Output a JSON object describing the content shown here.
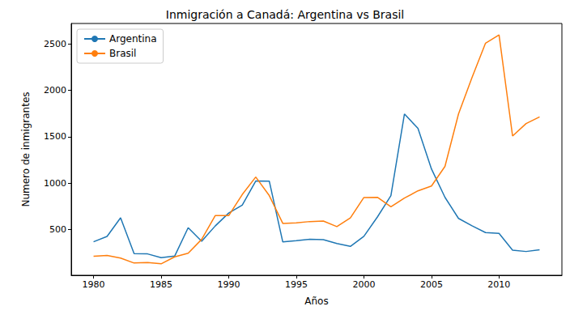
{
  "chart_data": {
    "type": "line",
    "title": "Inmigración a Canadá: Argentina vs Brasil",
    "x_label": "Años",
    "y_label": "Numero de inmigrantes",
    "x": [
      1980,
      1981,
      1982,
      1983,
      1984,
      1985,
      1986,
      1987,
      1988,
      1989,
      1990,
      1991,
      1992,
      1993,
      1994,
      1995,
      1996,
      1997,
      1998,
      1999,
      2000,
      2001,
      2002,
      2003,
      2004,
      2005,
      2006,
      2007,
      2008,
      2009,
      2010,
      2011,
      2012,
      2013
    ],
    "series": [
      {
        "name": "Argentina",
        "color": "#1f77b4",
        "values": [
          368,
          426,
          626,
          241,
          237,
          196,
          213,
          519,
          374,
          538,
          678,
          763,
          1023,
          1022,
          366,
          380,
          396,
          391,
          349,
          318,
          427,
          635,
          865,
          1745,
          1591,
          1153,
          847,
          620,
          540,
          467,
          459,
          278,
          263,
          282
        ]
      },
      {
        "name": "Brasil",
        "color": "#ff7f0e",
        "values": [
          211,
          220,
          192,
          139,
          145,
          130,
          205,
          244,
          394,
          650,
          650,
          877,
          1066,
          866,
          566,
          572,
          586,
          591,
          531,
          626,
          845,
          847,
          745,
          839,
          917,
          969,
          1181,
          1746,
          2138,
          2509,
          2598,
          1508,
          1642,
          1714
        ]
      }
    ],
    "xlim": [
      1978.35,
      2014.65
    ],
    "xticks": [
      1980,
      1985,
      1990,
      1995,
      2000,
      2005,
      2010
    ],
    "ylim": [
      6.6,
      2721.4
    ],
    "yticks": [
      500,
      1000,
      1500,
      2000,
      2500
    ],
    "grid": false,
    "legend": "upper left"
  }
}
